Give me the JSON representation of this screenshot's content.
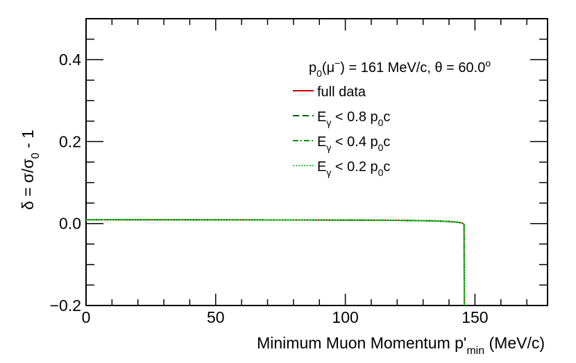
{
  "chart_data": {
    "type": "line",
    "title": "",
    "xlabel": {
      "main": "Minimum Muon Momentum p'",
      "sub": "min",
      "tail": " (MeV/c)"
    },
    "ylabel": {
      "a": "δ = σ/σ",
      "sub": "0",
      "b": " - 1"
    },
    "xlim": [
      0,
      178
    ],
    "ylim": [
      -0.2,
      0.5
    ],
    "xticks": [
      0,
      50,
      100,
      150
    ],
    "xtick_labels": [
      "0",
      "50",
      "100",
      "150"
    ],
    "yticks": [
      -0.2,
      0.0,
      0.2,
      0.4
    ],
    "ytick_labels": [
      "−0.2",
      "0.0",
      "0.2",
      "0.4"
    ],
    "grid": false,
    "legend_position": "top-right",
    "annotation": {
      "p_a": "p",
      "p_sub": "0",
      "p_b": "(μ",
      "p_sup": "−",
      "p_c": ") = 161 MeV/c, θ = 60.0",
      "deg_sup": "o"
    },
    "series": [
      {
        "name": "full data",
        "legend": {
          "a": "full data"
        },
        "color": "#cc0000",
        "dash": "",
        "x": [
          0,
          20,
          40,
          60,
          80,
          100,
          120,
          135,
          140,
          143,
          145,
          145.8,
          145.9
        ],
        "y": [
          0.0095,
          0.0093,
          0.0091,
          0.009,
          0.0088,
          0.0085,
          0.0079,
          0.0065,
          0.005,
          0.0035,
          0.0015,
          -0.002,
          -0.2
        ]
      },
      {
        "name": "E_γ < 0.8 p_0c",
        "legend": {
          "a": "E",
          "sub1": "γ",
          "b": " < 0.8 p",
          "sub2": "0",
          "c": "c"
        },
        "color": "#006600",
        "dash": "9,5",
        "x": [
          0,
          20,
          40,
          60,
          80,
          100,
          120,
          135,
          140,
          143,
          145,
          145.8,
          145.9
        ],
        "y": [
          0.0095,
          0.0093,
          0.0091,
          0.009,
          0.0088,
          0.0085,
          0.0079,
          0.0065,
          0.005,
          0.0035,
          0.0015,
          -0.002,
          -0.2
        ]
      },
      {
        "name": "E_γ < 0.4 p_0c",
        "legend": {
          "a": "E",
          "sub1": "γ",
          "b": " < 0.4 p",
          "sub2": "0",
          "c": "c"
        },
        "color": "#009900",
        "dash": "8,3,2,3",
        "x": [
          0,
          20,
          40,
          60,
          80,
          100,
          120,
          135,
          140,
          143,
          145,
          145.8,
          145.9
        ],
        "y": [
          0.0095,
          0.0093,
          0.0091,
          0.009,
          0.0088,
          0.0085,
          0.0079,
          0.0065,
          0.005,
          0.0035,
          0.0015,
          -0.002,
          -0.2
        ]
      },
      {
        "name": "E_γ < 0.2 p_0c",
        "legend": {
          "a": "E",
          "sub1": "γ",
          "b": " < 0.2 p",
          "sub2": "0",
          "c": "c"
        },
        "color": "#33cc33",
        "dash": "2,2",
        "x": [
          0,
          20,
          40,
          60,
          80,
          100,
          120,
          135,
          140,
          143,
          145,
          145.8,
          145.9
        ],
        "y": [
          0.0095,
          0.0093,
          0.0091,
          0.009,
          0.0088,
          0.0085,
          0.0079,
          0.0065,
          0.005,
          0.0035,
          0.0015,
          -0.002,
          -0.2
        ]
      }
    ]
  }
}
